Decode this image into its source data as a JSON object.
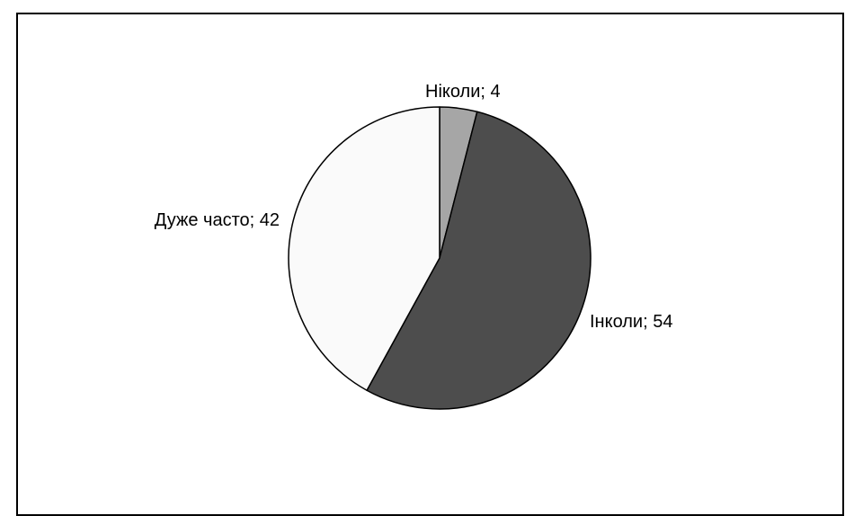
{
  "chart_data": {
    "type": "pie",
    "title": "",
    "start_angle_deg": 0,
    "direction": "clockwise",
    "slices": [
      {
        "label": "Ніколи; 4",
        "category": "Ніколи",
        "value": 4,
        "color": "#a6a6a6"
      },
      {
        "label": "Інколи; 54",
        "category": "Інколи",
        "value": 54,
        "color": "#4d4d4d"
      },
      {
        "label": "Дуже часто; 42",
        "category": "Дуже часто",
        "value": 42,
        "color": "#fafafa"
      }
    ],
    "legend": "none"
  }
}
